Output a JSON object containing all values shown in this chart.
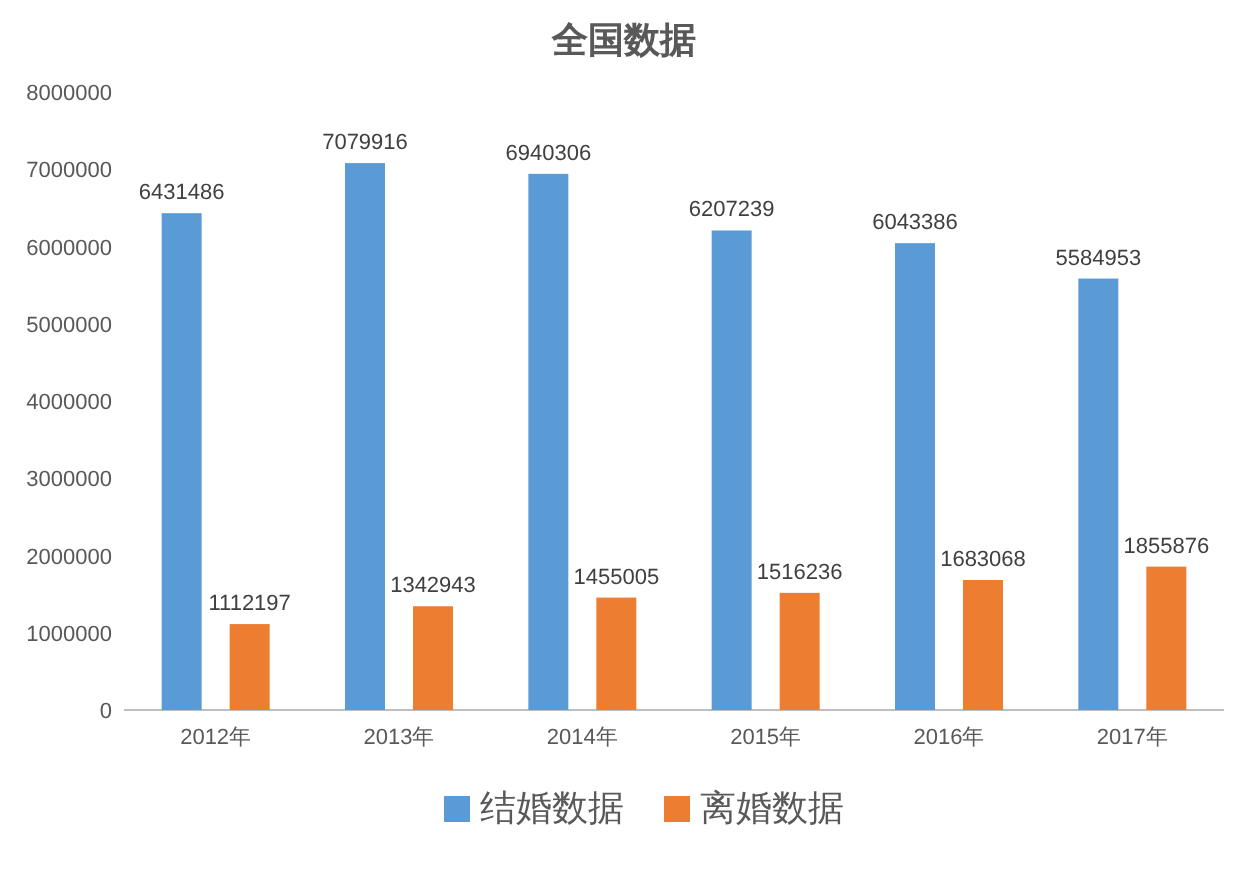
{
  "chart_data": {
    "type": "bar",
    "title": "全国数据",
    "categories": [
      "2012年",
      "2013年",
      "2014年",
      "2015年",
      "2016年",
      "2017年"
    ],
    "series": [
      {
        "name": "结婚数据",
        "color": "#5b9bd5",
        "values": [
          6431486,
          7079916,
          6940306,
          6207239,
          6043386,
          5584953
        ]
      },
      {
        "name": "离婚数据",
        "color": "#ed7d31",
        "values": [
          1112197,
          1342943,
          1455005,
          1516236,
          1683068,
          1855876
        ]
      }
    ],
    "ylim": [
      0,
      8000000
    ],
    "yticks": [
      0,
      1000000,
      2000000,
      3000000,
      4000000,
      5000000,
      6000000,
      7000000,
      8000000
    ],
    "data_labels": true,
    "legend": "bottom",
    "grid": false
  }
}
